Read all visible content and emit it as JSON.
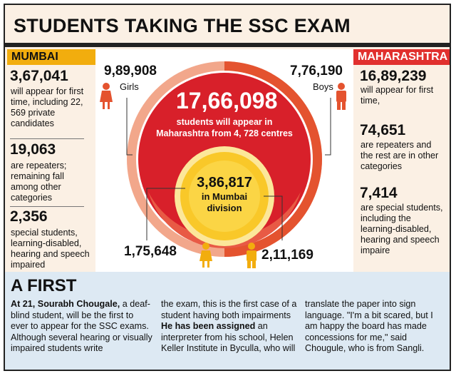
{
  "title": "STUDENTS TAKING THE SSC EXAM",
  "mumbai": {
    "header": "MUMBAI",
    "items": [
      {
        "value": "3,67,041",
        "text": "will appear for first time, including 22, 569 private candidates"
      },
      {
        "value": "19,063",
        "text": "are repeaters; remaining fall among other categories"
      },
      {
        "value": "2,356",
        "text": "special students, learning-disabled, hearing and speech impaired"
      }
    ]
  },
  "maharashtra": {
    "header": "MAHARASHTRA",
    "items": [
      {
        "value": "16,89,239",
        "text": "will appear for first time,"
      },
      {
        "value": "74,651",
        "text": "are repeaters and the rest are in other categories"
      },
      {
        "value": "7,414",
        "text": "are special students, including the learning-disabled, hearing and speech impaire"
      }
    ]
  },
  "center": {
    "girls_value": "9,89,908",
    "girls_label": "Girls",
    "boys_value": "7,76,190",
    "boys_label": "Boys",
    "total_value": "17,66,098",
    "total_text_line1": "students will appear in",
    "total_text_line2": "Maharashtra from 4, 728 centres",
    "mumbai_value": "3,86,817",
    "mumbai_text_line1": "in Mumbai",
    "mumbai_text_line2": "division",
    "mumbai_girls": "1,75,648",
    "mumbai_boys": "2,11,169",
    "colors": {
      "dark_red": "#d8202a",
      "orange_red": "#e4532f",
      "salmon": "#f2a78b",
      "yellow": "#f9c829",
      "pale_yellow": "#fce79a"
    }
  },
  "first": {
    "title": "A FIRST",
    "col1_bold": "At 21, Sourabh Chougale,",
    "col1_text": " a deaf-blind student, will be the first to ever to appear for the SSC exams. Although several hearing or visually impaired students write",
    "col2_text1": "the exam, this is the first case of a student having both impairments ",
    "col2_bold": "He has been assigned",
    "col2_text2": " an interpreter from his school, Helen Keller Institute in Byculla, who will",
    "col3_text": "translate the paper into sign language. \"I'm a bit scared, but I am happy the board has made concessions for me,\" said Chougule, who is from Sangli."
  }
}
